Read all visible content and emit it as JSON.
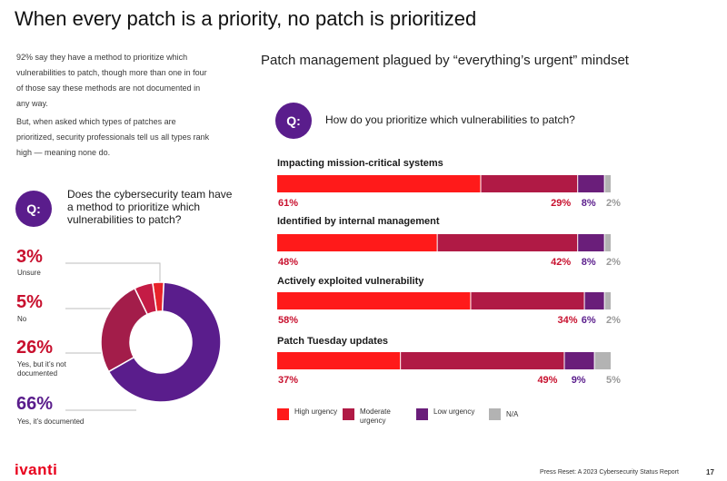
{
  "title": "When every patch is a priority, no patch is prioritized",
  "intro": {
    "p1": "92% say they have a method to prioritize which vulnerabilities to patch, though more than one in four of those say these methods are not documented in any way.",
    "p2": "But, when asked which types of patches are prioritized, security professionals tell us all types rank high — meaning none do."
  },
  "right_heading": "Patch management plagued by “everything’s urgent” mindset",
  "colors": {
    "high": "#ff1a1a",
    "moderate": "#b01a45",
    "low": "#6a1e7a",
    "na": "#b3b3b3",
    "donut_unsure": "#e8232a",
    "donut_no": "#c41b45",
    "donut_undocumented": "#a31d4a",
    "donut_documented": "#5a1d8c",
    "label_red": "#c8102e",
    "label_purple": "#5a1d8c"
  },
  "chart_data": [
    {
      "type": "pie",
      "question_badge": "Q:",
      "title": "Does the cybersecurity team have a method to prioritize which vulnerabilities to patch?",
      "slices": [
        {
          "label": "Unsure",
          "value": 3,
          "display": "3%"
        },
        {
          "label": "No",
          "value": 5,
          "display": "5%"
        },
        {
          "label": "Yes, but it’s not documented",
          "value": 26,
          "display": "26%"
        },
        {
          "label": "Yes, it’s documented",
          "value": 66,
          "display": "66%"
        }
      ]
    },
    {
      "type": "bar",
      "orientation": "horizontal-stacked",
      "question_badge": "Q:",
      "title": "How do you prioritize which vulnerabilities to patch?",
      "categories": [
        "Impacting mission-critical systems",
        "Identified by internal management",
        "Actively exploited vulnerability",
        "Patch Tuesday updates"
      ],
      "series": [
        {
          "name": "High urgency",
          "values": [
            61,
            48,
            58,
            37
          ],
          "labels": [
            "61%",
            "48%",
            "58%",
            "37%"
          ]
        },
        {
          "name": "Moderate urgency",
          "values": [
            29,
            42,
            34,
            49
          ],
          "labels": [
            "29%",
            "42%",
            "34%",
            "49%"
          ]
        },
        {
          "name": "Low urgency",
          "values": [
            8,
            8,
            6,
            9
          ],
          "labels": [
            "8%",
            "8%",
            "6%",
            "9%"
          ]
        },
        {
          "name": "N/A",
          "values": [
            2,
            2,
            2,
            5
          ],
          "labels": [
            "2%",
            "2%",
            "2%",
            "5%"
          ]
        }
      ],
      "xlim": [
        0,
        100
      ],
      "legend": "bottom"
    }
  ],
  "legend": {
    "high": "High urgency",
    "moderate": "Moderate urgency",
    "low": "Low urgency",
    "na": "N/A"
  },
  "footer": {
    "logo": "ivanti",
    "report": "Press Reset: A 2023 Cybersecurity Status Report",
    "page": "17"
  }
}
